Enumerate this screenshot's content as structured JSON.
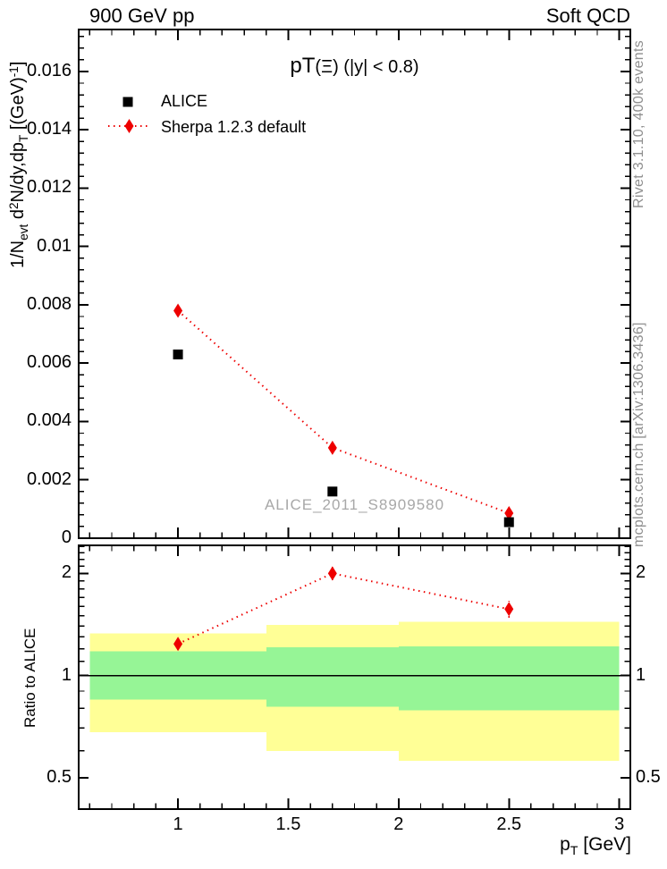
{
  "header": {
    "left": "900 GeV pp",
    "right": "Soft QCD"
  },
  "titles": {
    "plot_title_parts": [
      [
        "big",
        "pT"
      ],
      [
        "t",
        "(Ξ) (|y| < 0.8)"
      ]
    ],
    "y_main_parts": [
      [
        "t",
        "1/N"
      ],
      [
        "sub",
        "evt"
      ],
      [
        "t",
        " d"
      ],
      [
        "sup",
        "2"
      ],
      [
        "t",
        "N/dy,dp"
      ],
      [
        "sub",
        "T"
      ],
      [
        "t",
        " [(GeV)"
      ],
      [
        "sup",
        "-1"
      ],
      [
        "t",
        "]"
      ]
    ],
    "y_ratio": "Ratio to ALICE",
    "x_title_parts": [
      [
        "t",
        "p"
      ],
      [
        "sub",
        "T"
      ],
      [
        "t",
        " [GeV]"
      ]
    ]
  },
  "legend": {
    "entries": [
      {
        "label": "ALICE",
        "marker": "square",
        "color": "#000000"
      },
      {
        "label": "Sherpa 1.2.3 default",
        "marker": "diamond",
        "color": "#ee0000",
        "line": "dotted"
      }
    ]
  },
  "watermark": "ALICE_2011_S8909580",
  "side_notes": {
    "top": "Rivet 3.1.10,  400k events",
    "bottom": "mcplots.cern.ch [arXiv:1306.3436]"
  },
  "colors": {
    "sherpa_red": "#ee0000",
    "band_outer_yellow": "#ffff96",
    "band_inner_green": "#96f596",
    "gray_text": "#8f8f8f"
  },
  "chart_data": [
    {
      "type": "scatter",
      "panel": "main",
      "title": "pT(Xi) (|y| < 0.8)",
      "xlabel": "p_T [GeV]",
      "ylabel": "1/N_evt d^2N/dy,dp_T [(GeV)^-1]",
      "xlim": [
        0.55,
        3.05
      ],
      "ylim": [
        0,
        0.01744
      ],
      "grid": false,
      "legend_position": "top-left",
      "x_ticks": [
        "1",
        "1.5",
        "2",
        "2.5",
        "3"
      ],
      "x_minor_step": 0.1,
      "y_ticks": [
        "0",
        "0.002",
        "0.004",
        "0.006",
        "0.008",
        "0.01",
        "0.012",
        "0.014",
        "0.016"
      ],
      "y_minor_step": 0.0004,
      "series": [
        {
          "name": "ALICE",
          "marker": "square",
          "color": "#000000",
          "x": [
            1.0,
            1.7,
            2.5
          ],
          "y": [
            0.0063,
            0.0016,
            0.00055
          ]
        },
        {
          "name": "Sherpa 1.2.3 default",
          "marker": "diamond",
          "color": "#ee0000",
          "line": "dotted",
          "x": [
            1.0,
            1.7,
            2.5
          ],
          "y": [
            0.0078,
            0.0031,
            0.00086
          ],
          "yerr": [
            0.00012,
            0.0001,
            0.00012
          ]
        }
      ]
    },
    {
      "type": "scatter",
      "panel": "ratio",
      "ylabel": "Ratio to ALICE",
      "yscale": "log",
      "xlim": [
        0.55,
        3.05
      ],
      "ylim": [
        0.404,
        2.42
      ],
      "y_ticks": [
        "0.5",
        "1",
        "2"
      ],
      "y_minor_ticks": [
        0.6,
        0.7,
        0.8,
        0.9,
        1.1,
        1.2,
        1.3,
        1.4,
        1.5,
        1.6,
        1.7,
        1.8,
        1.9,
        2.1,
        2.2,
        2.3,
        2.4
      ],
      "unity_line": 1,
      "bands": [
        {
          "x": [
            0.6,
            1.4
          ],
          "outer": [
            0.68,
            1.33
          ],
          "inner": [
            0.85,
            1.18
          ]
        },
        {
          "x": [
            1.4,
            2.0
          ],
          "outer": [
            0.6,
            1.41
          ],
          "inner": [
            0.81,
            1.21
          ]
        },
        {
          "x": [
            2.0,
            3.0
          ],
          "outer": [
            0.56,
            1.44
          ],
          "inner": [
            0.79,
            1.22
          ]
        }
      ],
      "series": [
        {
          "name": "Sherpa 1.2.3 default",
          "marker": "diamond",
          "color": "#ee0000",
          "line": "dotted",
          "x": [
            1.0,
            1.7,
            2.5
          ],
          "y": [
            1.24,
            2.0,
            1.57
          ],
          "yerr": [
            0.05,
            0.09,
            0.09
          ]
        }
      ]
    }
  ]
}
